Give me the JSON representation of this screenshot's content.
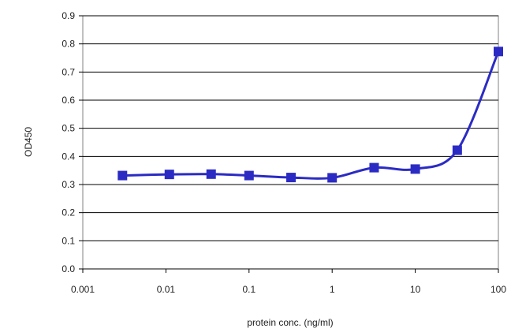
{
  "chart_data": {
    "type": "line",
    "title": "",
    "xlabel": "protein conc. (ng/ml)",
    "ylabel": "OD450",
    "x_scale": "log",
    "xlim": [
      0.001,
      100
    ],
    "ylim": [
      0,
      0.9
    ],
    "x_ticks": [
      0.001,
      0.01,
      0.1,
      1,
      10,
      100
    ],
    "x_tick_labels": [
      "0.001",
      "0.01",
      "0.1",
      "1",
      "10",
      "100"
    ],
    "y_ticks": [
      0,
      0.1,
      0.2,
      0.3,
      0.4,
      0.5,
      0.6,
      0.7,
      0.8,
      0.9
    ],
    "y_tick_labels": [
      "0.0",
      "0.1",
      "0.2",
      "0.3",
      "0.4",
      "0.5",
      "0.6",
      "0.7",
      "0.8",
      "0.9"
    ],
    "grid": "horizontal",
    "legend": "none",
    "series": [
      {
        "color": "#2b2bc4",
        "marker": "square",
        "smooth": true,
        "points": [
          {
            "x": 0.003,
            "y": 0.332
          },
          {
            "x": 0.011,
            "y": 0.336
          },
          {
            "x": 0.035,
            "y": 0.337
          },
          {
            "x": 0.1,
            "y": 0.332
          },
          {
            "x": 0.32,
            "y": 0.325
          },
          {
            "x": 1.0,
            "y": 0.324
          },
          {
            "x": 3.2,
            "y": 0.36
          },
          {
            "x": 10.0,
            "y": 0.355
          },
          {
            "x": 32,
            "y": 0.422
          },
          {
            "x": 100,
            "y": 0.773
          }
        ]
      }
    ]
  }
}
